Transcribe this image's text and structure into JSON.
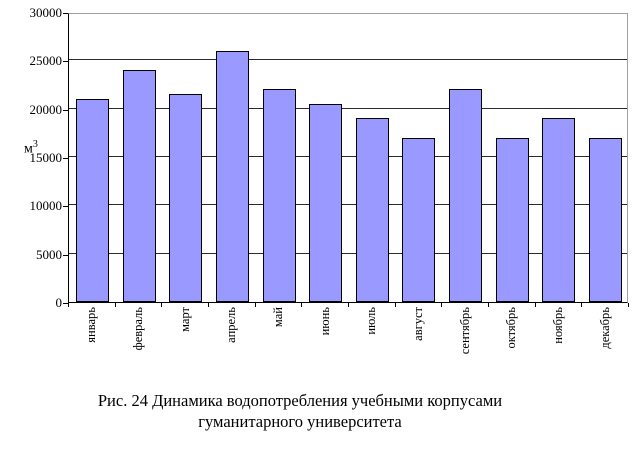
{
  "chart_data": {
    "type": "bar",
    "title": "",
    "categories": [
      "январь",
      "февраль",
      "март",
      "апрель",
      "май",
      "июнь",
      "июль",
      "август",
      "сентябрь",
      "октябрь",
      "ноябрь",
      "декабрь"
    ],
    "values": [
      21000,
      24000,
      21500,
      26000,
      22000,
      20500,
      19000,
      17000,
      22000,
      17000,
      19000,
      17000
    ],
    "xlabel": "",
    "ylabel_base": "м",
    "ylabel_sup": "3",
    "ylim": [
      0,
      30000
    ],
    "ytick_step": 5000,
    "ytick_labels": [
      "0",
      "5000",
      "10000",
      "15000",
      "20000",
      "25000",
      "30000"
    ],
    "grid": "horizontal",
    "legend": "none",
    "bar_fill_color": "#9999FF",
    "bar_border_color": "#000000",
    "gridline_color": "#2b2b2b",
    "plot_border_color": "#a0a0a0",
    "axis_color": "#000000"
  },
  "caption": {
    "line1": "Рис. 24 Динамика водопотребления учебными корпусами",
    "line2": "гуманитарного университета"
  }
}
